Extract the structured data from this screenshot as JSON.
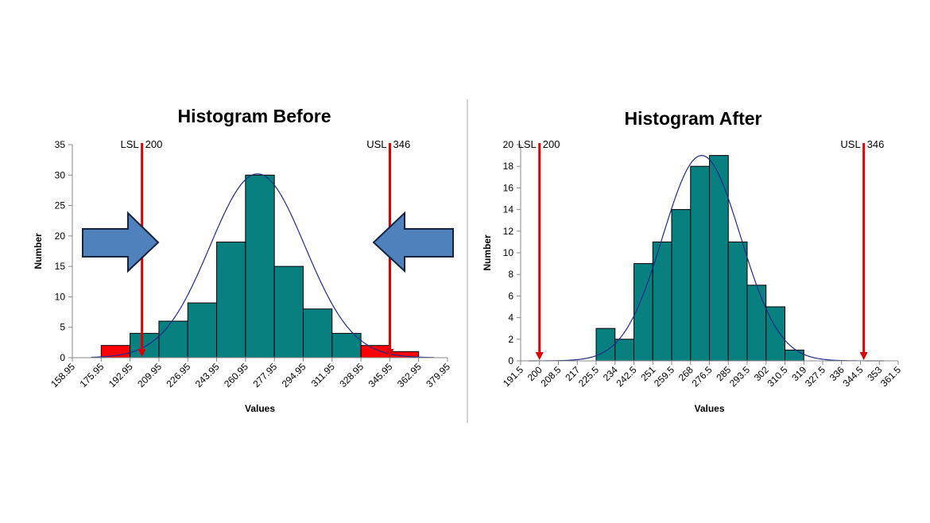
{
  "colors": {
    "bar": "#088080",
    "bar_out_of_spec": "#ff0000",
    "spec_line": "#dd0000",
    "curve": "#1f2a8c",
    "arrow_fill": "#4f81bd",
    "arrow_stroke": "#16233f",
    "divider": "#aaaaaa"
  },
  "chart_data": [
    {
      "type": "bar",
      "title": "Histogram Before",
      "xlabel": "Values",
      "ylabel": "Number",
      "x_ticks": [
        "158.95",
        "175.95",
        "192.95",
        "209.95",
        "226.95",
        "243.95",
        "260.95",
        "277.95",
        "294.95",
        "311.95",
        "328.95",
        "345.95",
        "362.95",
        "379.95"
      ],
      "y_ticks": [
        0,
        5,
        10,
        15,
        20,
        25,
        30,
        35
      ],
      "ylim": [
        0,
        35
      ],
      "values": [
        0,
        2,
        4,
        6,
        9,
        19,
        30,
        15,
        8,
        4,
        2,
        1
      ],
      "out_of_spec_bins": [
        1,
        10,
        11
      ],
      "curve": {
        "type": "normal",
        "mean": 268,
        "sd": 28,
        "peak": 30.2
      },
      "spec_limits": [
        {
          "label": "LSL",
          "value": "200",
          "x": 200
        },
        {
          "label": "USL",
          "value": "346",
          "x": 346
        }
      ],
      "annotations": [
        "arrow-pointing-right",
        "arrow-pointing-left"
      ],
      "grid": false,
      "legend": "none"
    },
    {
      "type": "bar",
      "title": "Histogram After",
      "xlabel": "Values",
      "ylabel": "Number",
      "x_ticks": [
        "191.5",
        "200",
        "208.5",
        "217",
        "225.5",
        "234",
        "242.5",
        "251",
        "259.5",
        "268",
        "276.5",
        "285",
        "293.5",
        "302",
        "310.5",
        "319",
        "327.5",
        "336",
        "344.5",
        "353",
        "361.5"
      ],
      "y_ticks": [
        0,
        2,
        4,
        6,
        8,
        10,
        12,
        14,
        16,
        18,
        20
      ],
      "ylim": [
        0,
        20
      ],
      "values": [
        0,
        0,
        0,
        0,
        3,
        2,
        9,
        11,
        14,
        18,
        19,
        11,
        7,
        5,
        1,
        0,
        0,
        0,
        0,
        0
      ],
      "out_of_spec_bins": [],
      "curve": {
        "type": "normal",
        "mean": 273,
        "sd": 17.5,
        "peak": 19
      },
      "spec_limits": [
        {
          "label": "LSL",
          "value": "200",
          "x": 200
        },
        {
          "label": "USL",
          "value": "346",
          "x": 346
        }
      ],
      "grid": false,
      "legend": "none"
    }
  ]
}
